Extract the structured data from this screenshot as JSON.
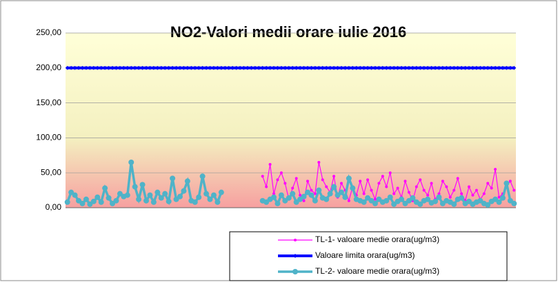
{
  "chart_data": {
    "type": "line",
    "title": "NO2-Valori medii orare iulie 2016",
    "categories": [
      null,
      null,
      null,
      null,
      null,
      null,
      null,
      null,
      null,
      null,
      null,
      null,
      null,
      null,
      null,
      null,
      null,
      null,
      null,
      null,
      null,
      null,
      null,
      null,
      null,
      null,
      null,
      null,
      null,
      null,
      null,
      null,
      null,
      null,
      null,
      null,
      null,
      null,
      null,
      null,
      null,
      null,
      null,
      null,
      null,
      null,
      null,
      null,
      null,
      null,
      null,
      null,
      null,
      null,
      null,
      null,
      null,
      null,
      null,
      null,
      null,
      null,
      null,
      null,
      null,
      null,
      null,
      null,
      null,
      null,
      null,
      null,
      null,
      null,
      null,
      null,
      null,
      null,
      null,
      null,
      null,
      null,
      null,
      null,
      null,
      null,
      null,
      null,
      null,
      null,
      null,
      null,
      null,
      null,
      null,
      null,
      null,
      null,
      null,
      null,
      null,
      null,
      null,
      null,
      null,
      null,
      null,
      null,
      null,
      null,
      null,
      null,
      null,
      null,
      null,
      null,
      null,
      null,
      null,
      null
    ],
    "series": [
      {
        "name": "TL-1- valoare medie orara(ug/m3)",
        "color": "#ff00ff",
        "marker": "dot",
        "values": [
          null,
          null,
          null,
          null,
          null,
          null,
          null,
          null,
          null,
          null,
          null,
          null,
          null,
          null,
          null,
          null,
          null,
          null,
          null,
          null,
          null,
          null,
          null,
          null,
          null,
          null,
          null,
          null,
          null,
          null,
          null,
          null,
          null,
          null,
          null,
          null,
          null,
          null,
          null,
          null,
          null,
          null,
          null,
          null,
          null,
          null,
          null,
          null,
          null,
          null,
          null,
          null,
          45,
          30,
          62,
          20,
          40,
          50,
          35,
          12,
          28,
          42,
          18,
          10,
          38,
          25,
          20,
          65,
          40,
          30,
          22,
          45,
          15,
          35,
          25,
          10,
          30,
          18,
          38,
          20,
          40,
          25,
          12,
          35,
          45,
          30,
          50,
          20,
          28,
          15,
          38,
          22,
          10,
          30,
          40,
          25,
          18,
          35,
          12,
          20,
          38,
          30,
          15,
          25,
          42,
          20,
          10,
          30,
          18,
          25,
          12,
          20,
          35,
          28,
          55,
          15,
          20,
          30,
          38,
          25
        ]
      },
      {
        "name": "Valoare limita orara(ug/m3)",
        "color": "#0000ff",
        "marker": "diamond",
        "values": [
          200,
          200,
          200,
          200,
          200,
          200,
          200,
          200,
          200,
          200,
          200,
          200,
          200,
          200,
          200,
          200,
          200,
          200,
          200,
          200,
          200,
          200,
          200,
          200,
          200,
          200,
          200,
          200,
          200,
          200,
          200,
          200,
          200,
          200,
          200,
          200,
          200,
          200,
          200,
          200,
          200,
          200,
          200,
          200,
          200,
          200,
          200,
          200,
          200,
          200,
          200,
          200,
          200,
          200,
          200,
          200,
          200,
          200,
          200,
          200,
          200,
          200,
          200,
          200,
          200,
          200,
          200,
          200,
          200,
          200,
          200,
          200,
          200,
          200,
          200,
          200,
          200,
          200,
          200,
          200,
          200,
          200,
          200,
          200,
          200,
          200,
          200,
          200,
          200,
          200,
          200,
          200,
          200,
          200,
          200,
          200,
          200,
          200,
          200,
          200,
          200,
          200,
          200,
          200,
          200,
          200,
          200,
          200,
          200,
          200,
          200,
          200,
          200,
          200,
          200,
          200,
          200,
          200,
          200,
          200
        ]
      },
      {
        "name": "TL-2- valoare medie orara(ug/m3)",
        "color": "#4fb3c8",
        "marker": "circle",
        "values": [
          8,
          22,
          18,
          10,
          6,
          12,
          5,
          9,
          15,
          8,
          28,
          14,
          6,
          10,
          20,
          16,
          18,
          65,
          30,
          12,
          33,
          10,
          18,
          8,
          22,
          14,
          20,
          9,
          42,
          12,
          16,
          24,
          38,
          10,
          8,
          15,
          45,
          20,
          12,
          18,
          8,
          22,
          null,
          null,
          null,
          null,
          null,
          null,
          null,
          null,
          null,
          null,
          10,
          8,
          12,
          15,
          6,
          18,
          10,
          14,
          20,
          8,
          12,
          16,
          22,
          18,
          10,
          25,
          14,
          12,
          20,
          30,
          18,
          22,
          15,
          42,
          28,
          12,
          10,
          8,
          14,
          10,
          6,
          12,
          8,
          10,
          15,
          5,
          9,
          12,
          6,
          10,
          14,
          8,
          5,
          10,
          12,
          7,
          9,
          15,
          6,
          10,
          8,
          5,
          12,
          14,
          6,
          9,
          5,
          8,
          10,
          6,
          4,
          9,
          12,
          8,
          14,
          35,
          10,
          6
        ]
      }
    ],
    "ylim": [
      0,
      250
    ],
    "yticks": [
      {
        "value": 0,
        "label": "0,00"
      },
      {
        "value": 50,
        "label": "50,00"
      },
      {
        "value": 100,
        "label": "100,00"
      },
      {
        "value": 150,
        "label": "150,00"
      },
      {
        "value": 200,
        "label": "200,00"
      },
      {
        "value": 250,
        "label": "250,00"
      }
    ],
    "grid": true,
    "legend": "bottom-right"
  }
}
